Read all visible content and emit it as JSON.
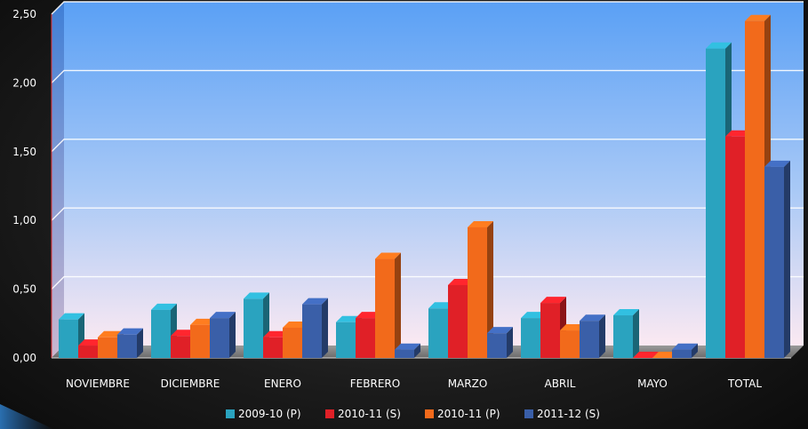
{
  "chart_data": {
    "type": "bar",
    "categories": [
      "NOVIEMBRE",
      "DICIEMBRE",
      "ENERO",
      "FEBRERO",
      "MARZO",
      "ABRIL",
      "MAYO",
      "TOTAL"
    ],
    "series": [
      {
        "name": "2009-10 (P)",
        "color": "#2aa3bf",
        "values": [
          0.28,
          0.35,
          0.43,
          0.26,
          0.36,
          0.29,
          0.31,
          2.25
        ]
      },
      {
        "name": "2010-11 (S)",
        "color": "#e02027",
        "values": [
          0.09,
          0.16,
          0.15,
          0.29,
          0.53,
          0.4,
          0.0,
          1.61
        ]
      },
      {
        "name": "2010-11 (P)",
        "color": "#f26a1b",
        "values": [
          0.15,
          0.24,
          0.22,
          0.72,
          0.95,
          0.2,
          0.0,
          2.45
        ]
      },
      {
        "name": "2011-12 (S)",
        "color": "#3a5fa8",
        "values": [
          0.17,
          0.29,
          0.39,
          0.06,
          0.18,
          0.27,
          0.06,
          1.39
        ]
      }
    ],
    "yticks": [
      "0,00",
      "0,50",
      "1,00",
      "1,50",
      "2,00",
      "2,50"
    ],
    "ylim": [
      0,
      2.5
    ],
    "grid": true,
    "legend_position": "bottom",
    "title": "",
    "xlabel": "",
    "ylabel": ""
  }
}
